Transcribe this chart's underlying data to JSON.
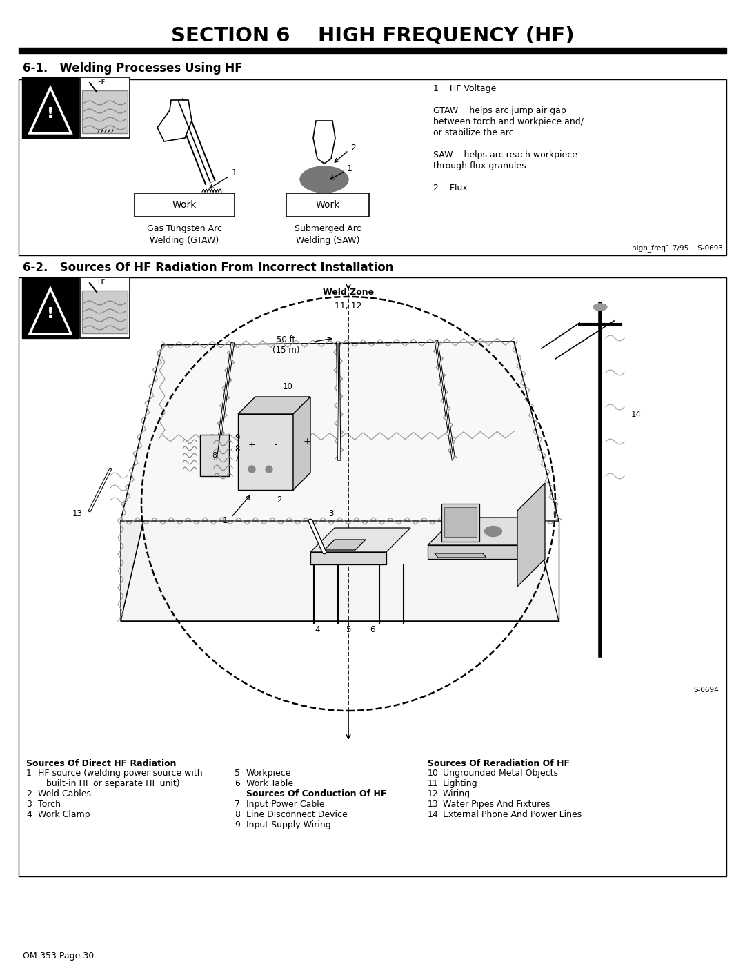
{
  "title": "SECTION 6    HIGH FREQUENCY (HF)",
  "section1_title": "6-1.   Welding Processes Using HF",
  "section2_title": "6-2.   Sources Of HF Radiation From Incorrect Installation",
  "page_label": "OM-353 Page 30",
  "right_text_lines": [
    [
      "1    HF Voltage",
      false
    ],
    [
      "",
      false
    ],
    [
      "GTAW    helps arc jump air gap",
      false
    ],
    [
      "between torch and workpiece and/",
      false
    ],
    [
      "or stabilize the arc.",
      false
    ],
    [
      "",
      false
    ],
    [
      "SAW    helps arc reach workpiece",
      false
    ],
    [
      "through flux granules.",
      false
    ],
    [
      "",
      false
    ],
    [
      "2    Flux",
      false
    ]
  ],
  "gtaw_label": "Gas Tungsten Arc\nWelding (GTAW)",
  "saw_label": "Submerged Arc\nWelding (SAW)",
  "freq_ref": "high_freq1 7/95    S-0693",
  "s_ref2": "S-0694",
  "weld_zone_label": "Weld Zone",
  "weld_zone_label2": "11, 12",
  "distance_label": "50 ft\n(15 m)",
  "legend_col1_title": "Sources Of Direct HF Radiation",
  "legend_col2_bold": "Sources Of Conduction Of HF",
  "legend_col3_title": "Sources Of Reradiation Of HF",
  "bg_color": "#ffffff",
  "text_color": "#000000"
}
